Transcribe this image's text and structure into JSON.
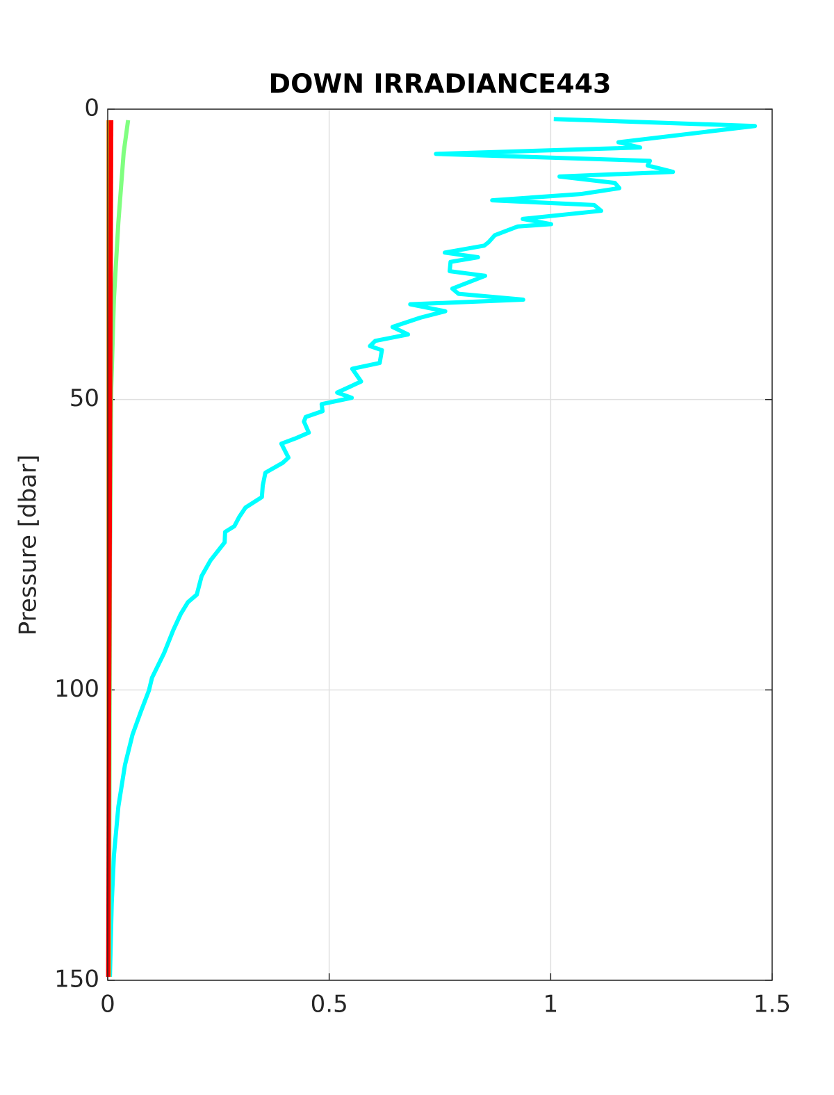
{
  "chart_data": {
    "type": "line",
    "title": "DOWN IRRADIANCE443",
    "ylabel": "Pressure [dbar]",
    "xlim": [
      0,
      1.5
    ],
    "xticks": [
      0,
      0.5,
      1,
      1.5
    ],
    "ylim": [
      0,
      150
    ],
    "yticks": [
      0,
      50,
      100,
      150
    ],
    "yreverse": true,
    "grid": true,
    "series": [
      {
        "color": "#00ffff",
        "x": [
          1.007,
          1.461,
          1.153,
          1.202,
          0.741,
          1.224,
          1.219,
          1.276,
          1.02,
          1.145,
          1.155,
          1.07,
          0.868,
          1.098,
          1.114,
          0.937,
          1.001,
          0.926,
          0.874,
          0.86,
          0.85,
          0.761,
          0.836,
          0.774,
          0.772,
          0.852,
          0.778,
          0.792,
          0.938,
          0.683,
          0.762,
          0.706,
          0.643,
          0.678,
          0.604,
          0.592,
          0.619,
          0.614,
          0.552,
          0.572,
          0.518,
          0.551,
          0.483,
          0.485,
          0.447,
          0.443,
          0.454,
          0.427,
          0.392,
          0.408,
          0.395,
          0.356,
          0.35,
          0.348,
          0.311,
          0.297,
          0.286,
          0.265,
          0.264,
          0.232,
          0.212,
          0.201,
          0.181,
          0.165,
          0.148,
          0.127,
          0.1,
          0.093,
          0.075,
          0.056,
          0.039,
          0.024,
          0.014,
          0.009,
          0.005
        ],
        "values": [
          1.7,
          2.9,
          5.7,
          6.6,
          7.7,
          8.9,
          9.7,
          10.8,
          11.6,
          12.7,
          13.6,
          14.6,
          15.7,
          16.5,
          17.5,
          18.9,
          19.8,
          20.2,
          21.7,
          22.9,
          23.5,
          24.7,
          25.5,
          26.3,
          27.9,
          28.7,
          30.9,
          31.8,
          32.8,
          33.6,
          34.8,
          35.9,
          37.5,
          38.8,
          39.9,
          40.8,
          41.5,
          43.7,
          44.7,
          46.9,
          48.8,
          49.7,
          50.8,
          52.0,
          53.0,
          53.8,
          55.7,
          56.6,
          57.6,
          60.0,
          60.9,
          62.6,
          64.8,
          66.8,
          68.6,
          70.2,
          71.8,
          72.8,
          74.6,
          77.7,
          80.4,
          83.6,
          84.9,
          86.9,
          89.7,
          93.7,
          97.9,
          100.1,
          103.7,
          107.7,
          112.9,
          120.1,
          128.5,
          136.8,
          149.4
        ]
      },
      {
        "color": "#80ff80",
        "x": [
          0.046,
          0.036,
          0.024,
          0.014,
          0.008,
          0.005,
          0.003
        ],
        "values": [
          1.9,
          7.5,
          19.5,
          32.7,
          48,
          77,
          149.4
        ]
      },
      {
        "color": "#ff8000",
        "x": [
          0.002,
          0.002
        ],
        "values": [
          1.9,
          149.4
        ]
      },
      {
        "color": "#ff0000",
        "x": [
          0.008,
          0.001
        ],
        "values": [
          1.9,
          149.4
        ]
      }
    ]
  }
}
